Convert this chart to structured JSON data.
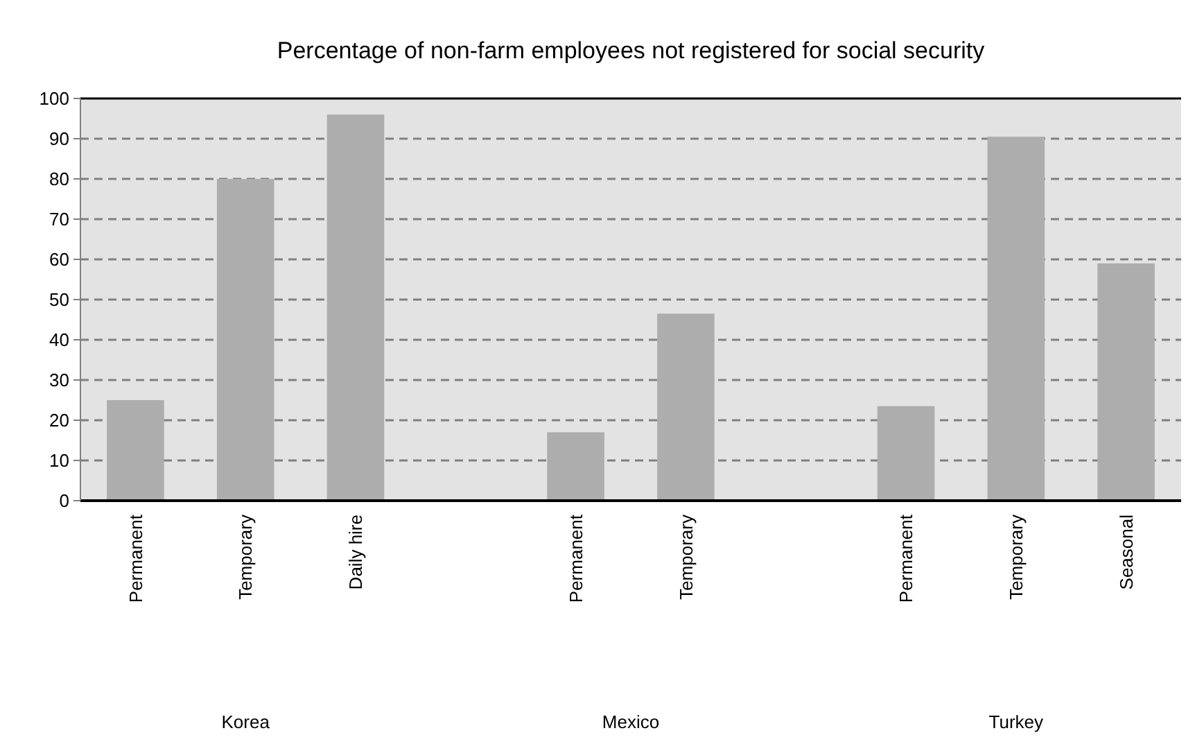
{
  "chart_data": {
    "type": "bar",
    "title": "Percentage of non-farm employees not registered for social security",
    "categories": [
      "Permanent",
      "Temporary",
      "Daily hire",
      null,
      "Permanent",
      "Temporary",
      null,
      "Permanent",
      "Temporary",
      "Seasonal"
    ],
    "values": [
      25,
      80,
      96,
      null,
      17,
      46.5,
      null,
      23.5,
      90.5,
      59
    ],
    "color": "#adadad",
    "ylim": [
      0,
      100
    ],
    "yticks": [
      0,
      10,
      20,
      30,
      40,
      50,
      60,
      70,
      80,
      90,
      100
    ],
    "grid": "y",
    "annotations": [
      "Korea",
      "Mexico",
      "Turkey"
    ]
  }
}
